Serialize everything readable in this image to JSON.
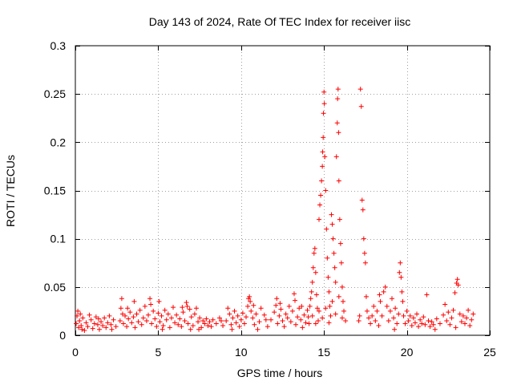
{
  "chart_data": {
    "type": "scatter",
    "title": "Day 143 of 2024, Rate Of TEC Index for receiver iisc",
    "xlabel": "GPS time / hours",
    "ylabel": "ROTI / TECUs",
    "xlim": [
      0,
      25
    ],
    "ylim": [
      0,
      0.3
    ],
    "xticks": [
      0,
      5,
      10,
      15,
      20,
      25
    ],
    "yticks": [
      0,
      0.05,
      0.1,
      0.15,
      0.2,
      0.25,
      0.3
    ],
    "xtick_labels": [
      "0",
      "5",
      "10",
      "15",
      "20",
      "25"
    ],
    "ytick_labels": [
      "0",
      "0.05",
      "0.1",
      "0.15",
      "0.2",
      "0.25",
      "0.3"
    ],
    "grid": true,
    "marker": "+",
    "color": "#ff0000",
    "series": [
      {
        "name": "ROTI",
        "points": [
          [
            0.05,
            0.012
          ],
          [
            0.1,
            0.02
          ],
          [
            0.15,
            0.025
          ],
          [
            0.2,
            0.008
          ],
          [
            0.25,
            0.015
          ],
          [
            0.3,
            0.022
          ],
          [
            0.35,
            0.01
          ],
          [
            0.45,
            0.018
          ],
          [
            0.55,
            0.005
          ],
          [
            0.65,
            0.013
          ],
          [
            0.75,
            0.009
          ],
          [
            0.85,
            0.021
          ],
          [
            0.95,
            0.016
          ],
          [
            1.05,
            0.007
          ],
          [
            1.15,
            0.012
          ],
          [
            1.25,
            0.019
          ],
          [
            1.35,
            0.011
          ],
          [
            1.45,
            0.006
          ],
          [
            1.55,
            0.014
          ],
          [
            1.65,
            0.01
          ],
          [
            1.75,
            0.018
          ],
          [
            1.85,
            0.008
          ],
          [
            1.95,
            0.013
          ],
          [
            2.05,
            0.02
          ],
          [
            2.15,
            0.011
          ],
          [
            2.3,
            0.016
          ],
          [
            2.45,
            0.009
          ],
          [
            2.7,
            0.015
          ],
          [
            2.75,
            0.028
          ],
          [
            2.8,
            0.038
          ],
          [
            2.85,
            0.022
          ],
          [
            2.9,
            0.012
          ],
          [
            3.0,
            0.02
          ],
          [
            3.1,
            0.009
          ],
          [
            3.2,
            0.017
          ],
          [
            3.3,
            0.024
          ],
          [
            3.4,
            0.013
          ],
          [
            3.5,
            0.019
          ],
          [
            3.6,
            0.008
          ],
          [
            3.7,
            0.022
          ],
          [
            3.8,
            0.014
          ],
          [
            3.9,
            0.026
          ],
          [
            4.0,
            0.011
          ],
          [
            4.1,
            0.018
          ],
          [
            4.2,
            0.03
          ],
          [
            4.3,
            0.015
          ],
          [
            4.4,
            0.021
          ],
          [
            4.5,
            0.038
          ],
          [
            4.55,
            0.032
          ],
          [
            4.6,
            0.012
          ],
          [
            4.7,
            0.025
          ],
          [
            4.8,
            0.017
          ],
          [
            4.9,
            0.009
          ],
          [
            5.0,
            0.023
          ],
          [
            5.05,
            0.035
          ],
          [
            5.1,
            0.014
          ],
          [
            5.2,
            0.02
          ],
          [
            5.3,
            0.01
          ],
          [
            5.4,
            0.026
          ],
          [
            5.5,
            0.016
          ],
          [
            5.6,
            0.022
          ],
          [
            5.7,
            0.008
          ],
          [
            5.8,
            0.018
          ],
          [
            5.9,
            0.029
          ],
          [
            6.0,
            0.013
          ],
          [
            6.1,
            0.021
          ],
          [
            6.2,
            0.011
          ],
          [
            6.3,
            0.017
          ],
          [
            6.4,
            0.009
          ],
          [
            6.5,
            0.024
          ],
          [
            6.6,
            0.015
          ],
          [
            6.7,
            0.034
          ],
          [
            6.75,
            0.03
          ],
          [
            6.8,
            0.012
          ],
          [
            6.9,
            0.027
          ],
          [
            7.0,
            0.019
          ],
          [
            7.1,
            0.01
          ],
          [
            7.2,
            0.022
          ],
          [
            7.3,
            0.028
          ],
          [
            7.4,
            0.014
          ],
          [
            7.5,
            0.018
          ],
          [
            7.6,
            0.008
          ],
          [
            7.7,
            0.015
          ],
          [
            7.8,
            0.012
          ],
          [
            7.9,
            0.017
          ],
          [
            8.0,
            0.01
          ],
          [
            8.1,
            0.014
          ],
          [
            8.2,
            0.009
          ],
          [
            8.3,
            0.016
          ],
          [
            8.5,
            0.012
          ],
          [
            8.7,
            0.018
          ],
          [
            8.9,
            0.01
          ],
          [
            9.1,
            0.015
          ],
          [
            9.3,
            0.022
          ],
          [
            9.4,
            0.011
          ],
          [
            9.5,
            0.018
          ],
          [
            9.6,
            0.025
          ],
          [
            9.7,
            0.013
          ],
          [
            9.8,
            0.02
          ],
          [
            9.9,
            0.009
          ],
          [
            10.0,
            0.016
          ],
          [
            10.1,
            0.023
          ],
          [
            10.2,
            0.012
          ],
          [
            10.3,
            0.019
          ],
          [
            10.4,
            0.03
          ],
          [
            10.45,
            0.038
          ],
          [
            10.5,
            0.04
          ],
          [
            10.55,
            0.035
          ],
          [
            10.6,
            0.025
          ],
          [
            10.7,
            0.018
          ],
          [
            10.8,
            0.011
          ],
          [
            10.9,
            0.022
          ],
          [
            11.1,
            0.014
          ],
          [
            11.4,
            0.021
          ],
          [
            11.6,
            0.009
          ],
          [
            11.8,
            0.016
          ],
          [
            12.0,
            0.024
          ],
          [
            12.1,
            0.031
          ],
          [
            12.15,
            0.038
          ],
          [
            12.2,
            0.012
          ],
          [
            12.3,
            0.02
          ],
          [
            12.4,
            0.027
          ],
          [
            12.5,
            0.015
          ],
          [
            12.6,
            0.009
          ],
          [
            12.7,
            0.022
          ],
          [
            12.8,
            0.018
          ],
          [
            12.9,
            0.03
          ],
          [
            13.0,
            0.014
          ],
          [
            13.1,
            0.025
          ],
          [
            13.2,
            0.043
          ],
          [
            13.25,
            0.036
          ],
          [
            13.3,
            0.011
          ],
          [
            13.4,
            0.019
          ],
          [
            13.5,
            0.028
          ],
          [
            13.6,
            0.016
          ],
          [
            13.7,
            0.008
          ],
          [
            13.8,
            0.021
          ],
          [
            13.9,
            0.013
          ],
          [
            14.0,
            0.026
          ],
          [
            14.05,
            0.019
          ],
          [
            14.1,
            0.012
          ],
          [
            14.15,
            0.03
          ],
          [
            14.2,
            0.038
          ],
          [
            14.25,
            0.045
          ],
          [
            14.3,
            0.055
          ],
          [
            14.35,
            0.07
          ],
          [
            14.4,
            0.085
          ],
          [
            14.45,
            0.09
          ],
          [
            14.5,
            0.065
          ],
          [
            14.55,
            0.042
          ],
          [
            14.6,
            0.028
          ],
          [
            14.65,
            0.015
          ],
          [
            14.7,
            0.12
          ],
          [
            14.75,
            0.135
          ],
          [
            14.8,
            0.145
          ],
          [
            14.85,
            0.16
          ],
          [
            14.9,
            0.175
          ],
          [
            14.92,
            0.19
          ],
          [
            14.95,
            0.205
          ],
          [
            14.97,
            0.23
          ],
          [
            15.0,
            0.252
          ],
          [
            15.02,
            0.24
          ],
          [
            15.05,
            0.185
          ],
          [
            15.1,
            0.15
          ],
          [
            15.15,
            0.11
          ],
          [
            15.2,
            0.08
          ],
          [
            15.25,
            0.06
          ],
          [
            15.3,
            0.045
          ],
          [
            15.35,
            0.03
          ],
          [
            15.4,
            0.02
          ],
          [
            15.45,
            0.125
          ],
          [
            15.5,
            0.115
          ],
          [
            15.55,
            0.1
          ],
          [
            15.6,
            0.085
          ],
          [
            15.65,
            0.07
          ],
          [
            15.7,
            0.055
          ],
          [
            15.75,
            0.185
          ],
          [
            15.8,
            0.22
          ],
          [
            15.82,
            0.245
          ],
          [
            15.85,
            0.255
          ],
          [
            15.88,
            0.21
          ],
          [
            15.9,
            0.16
          ],
          [
            15.95,
            0.12
          ],
          [
            16.0,
            0.095
          ],
          [
            16.05,
            0.075
          ],
          [
            16.1,
            0.05
          ],
          [
            16.15,
            0.035
          ],
          [
            16.2,
            0.025
          ],
          [
            16.3,
            0.015
          ],
          [
            14.3,
            0.02
          ],
          [
            14.5,
            0.012
          ],
          [
            14.7,
            0.025
          ],
          [
            14.9,
            0.018
          ],
          [
            15.1,
            0.028
          ],
          [
            15.3,
            0.013
          ],
          [
            15.5,
            0.035
          ],
          [
            15.7,
            0.022
          ],
          [
            15.9,
            0.04
          ],
          [
            16.1,
            0.018
          ],
          [
            17.1,
            0.015
          ],
          [
            17.15,
            0.02
          ],
          [
            17.2,
            0.255
          ],
          [
            17.25,
            0.237
          ],
          [
            17.3,
            0.14
          ],
          [
            17.35,
            0.13
          ],
          [
            17.4,
            0.1
          ],
          [
            17.45,
            0.085
          ],
          [
            17.5,
            0.075
          ],
          [
            17.55,
            0.04
          ],
          [
            17.6,
            0.025
          ],
          [
            17.7,
            0.018
          ],
          [
            17.8,
            0.012
          ],
          [
            17.9,
            0.02
          ],
          [
            18.0,
            0.03
          ],
          [
            18.1,
            0.015
          ],
          [
            18.2,
            0.025
          ],
          [
            18.3,
            0.01
          ],
          [
            18.4,
            0.035
          ],
          [
            18.5,
            0.02
          ],
          [
            18.6,
            0.045
          ],
          [
            18.7,
            0.05
          ],
          [
            18.8,
            0.03
          ],
          [
            18.9,
            0.015
          ],
          [
            19.0,
            0.025
          ],
          [
            19.1,
            0.038
          ],
          [
            19.2,
            0.018
          ],
          [
            19.3,
            0.028
          ],
          [
            19.4,
            0.012
          ],
          [
            19.5,
            0.022
          ],
          [
            19.55,
            0.065
          ],
          [
            19.6,
            0.075
          ],
          [
            19.65,
            0.06
          ],
          [
            19.7,
            0.045
          ],
          [
            19.75,
            0.035
          ],
          [
            19.8,
            0.02
          ],
          [
            19.9,
            0.012
          ],
          [
            20.0,
            0.025
          ],
          [
            20.1,
            0.015
          ],
          [
            20.2,
            0.02
          ],
          [
            20.3,
            0.01
          ],
          [
            20.4,
            0.018
          ],
          [
            20.5,
            0.013
          ],
          [
            20.6,
            0.022
          ],
          [
            20.7,
            0.009
          ],
          [
            20.8,
            0.016
          ],
          [
            20.9,
            0.012
          ],
          [
            21.0,
            0.019
          ],
          [
            21.1,
            0.011
          ],
          [
            21.2,
            0.042
          ],
          [
            21.3,
            0.015
          ],
          [
            21.4,
            0.009
          ],
          [
            21.5,
            0.014
          ],
          [
            21.6,
            0.011
          ],
          [
            21.8,
            0.017
          ],
          [
            22.0,
            0.012
          ],
          [
            22.2,
            0.021
          ],
          [
            22.3,
            0.032
          ],
          [
            22.4,
            0.015
          ],
          [
            22.5,
            0.024
          ],
          [
            22.6,
            0.011
          ],
          [
            22.7,
            0.018
          ],
          [
            22.8,
            0.026
          ],
          [
            22.9,
            0.044
          ],
          [
            23.0,
            0.054
          ],
          [
            23.05,
            0.058
          ],
          [
            23.1,
            0.052
          ],
          [
            23.2,
            0.022
          ],
          [
            23.3,
            0.014
          ],
          [
            23.4,
            0.02
          ],
          [
            23.5,
            0.012
          ],
          [
            23.6,
            0.018
          ],
          [
            23.7,
            0.026
          ],
          [
            23.8,
            0.01
          ],
          [
            23.9,
            0.016
          ],
          [
            24.0,
            0.022
          ],
          [
            0.4,
            0.006
          ],
          [
            1.4,
            0.017
          ],
          [
            2.2,
            0.006
          ],
          [
            3.15,
            0.028
          ],
          [
            5.25,
            0.006
          ],
          [
            6.45,
            0.029
          ],
          [
            7.45,
            0.006
          ],
          [
            9.2,
            0.028
          ],
          [
            11.0,
            0.006
          ],
          [
            12.35,
            0.033
          ],
          [
            13.65,
            0.03
          ],
          [
            19.25,
            0.006
          ],
          [
            21.7,
            0.006
          ],
          [
            22.95,
            0.008
          ],
          [
            8.8,
            0.015
          ],
          [
            9.45,
            0.006
          ],
          [
            10.75,
            0.031
          ],
          [
            11.2,
            0.028
          ],
          [
            11.5,
            0.016
          ],
          [
            3.55,
            0.035
          ],
          [
            6.95,
            0.006
          ],
          [
            18.35,
            0.042
          ]
        ]
      }
    ]
  }
}
